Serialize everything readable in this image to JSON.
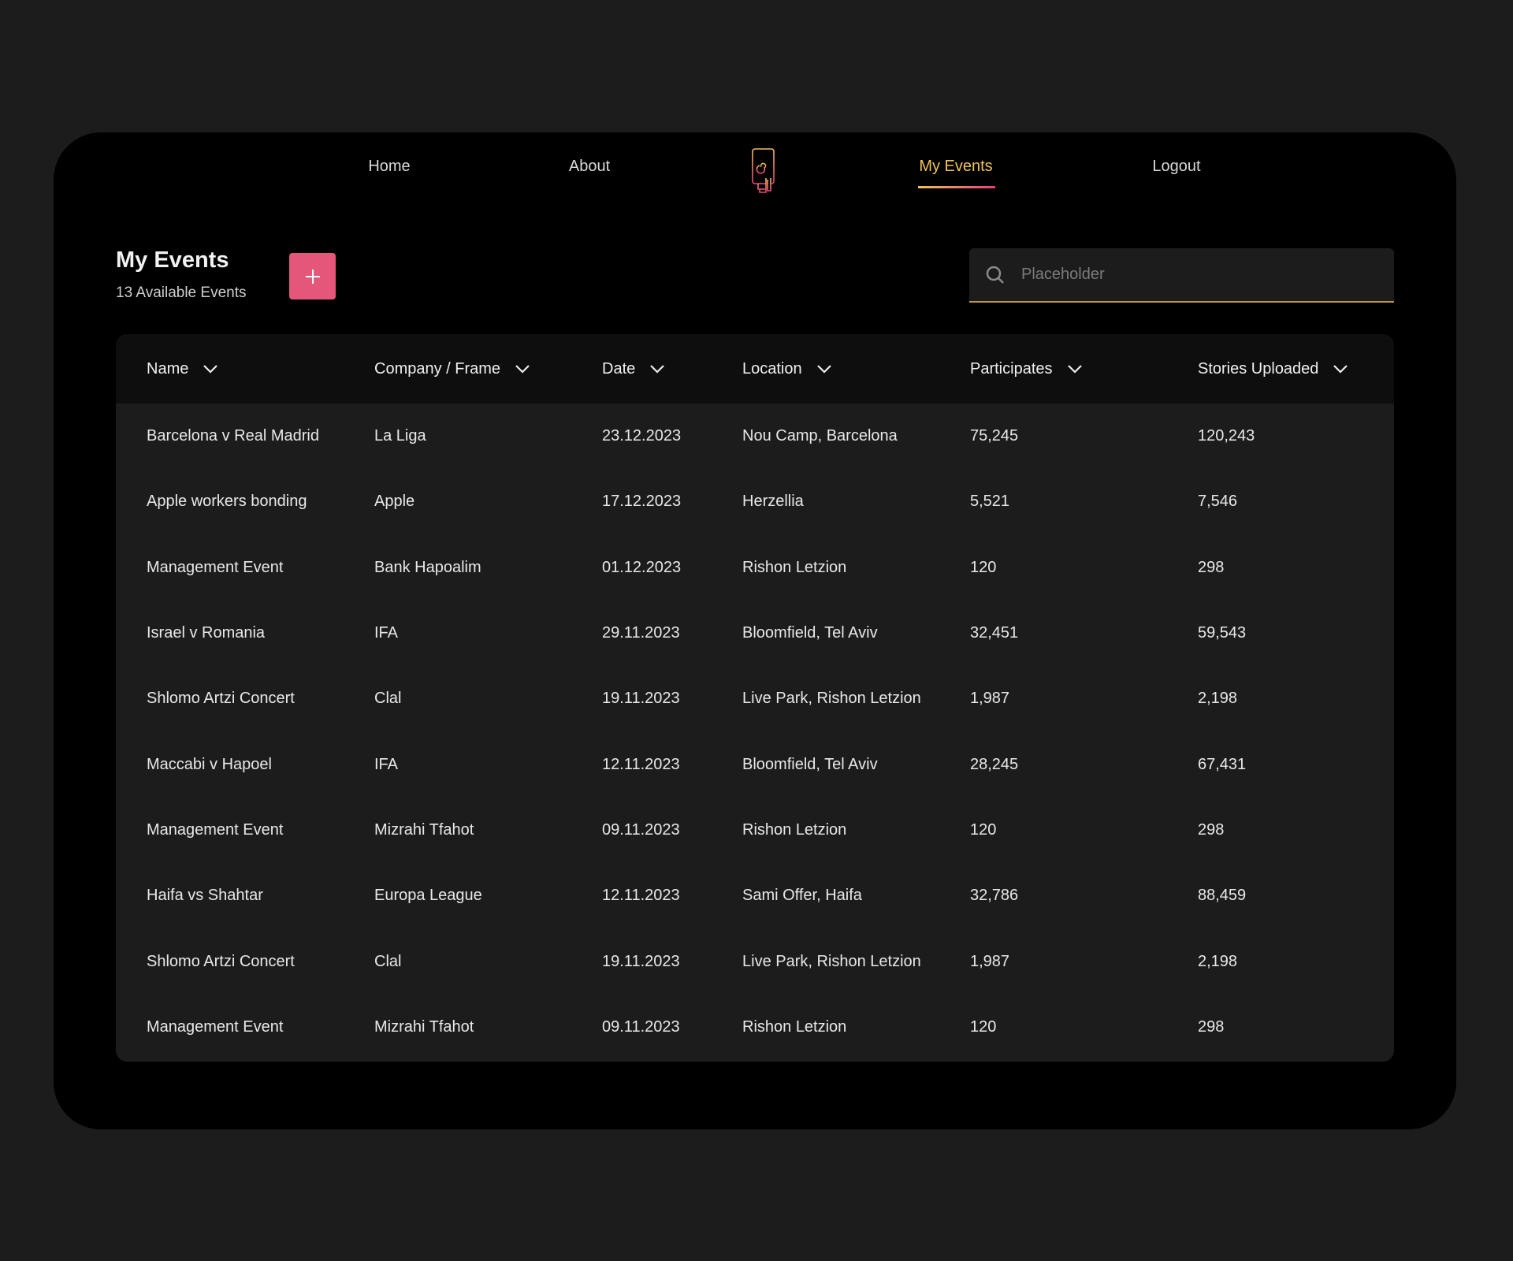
{
  "nav": {
    "home": "Home",
    "about": "About",
    "my_events": "My Events",
    "logout": "Logout"
  },
  "colors": {
    "accent": "#e4577a",
    "gold": "#f0c35a",
    "background": "#1c1c1c"
  },
  "header": {
    "title": "My Events",
    "subtitle": "13 Available Events",
    "add_icon": "plus-icon"
  },
  "search": {
    "placeholder": "Placeholder",
    "value": ""
  },
  "table": {
    "columns": [
      "Name",
      "Company / Frame",
      "Date",
      "Location",
      "Participates",
      "Stories Uploaded"
    ],
    "rows": [
      [
        "Barcelona v Real Madrid",
        "La Liga",
        "23.12.2023",
        "Nou Camp, Barcelona",
        "75,245",
        "120,243"
      ],
      [
        "Apple workers bonding",
        "Apple",
        "17.12.2023",
        "Herzellia",
        "5,521",
        "7,546"
      ],
      [
        "Management Event",
        "Bank Hapoalim",
        "01.12.2023",
        "Rishon Letzion",
        "120",
        "298"
      ],
      [
        "Israel v Romania",
        "IFA",
        "29.11.2023",
        "Bloomfield, Tel Aviv",
        "32,451",
        "59,543"
      ],
      [
        "Shlomo Artzi Concert",
        "Clal",
        "19.11.2023",
        "Live Park, Rishon Letzion",
        "1,987",
        "2,198"
      ],
      [
        "Maccabi v Hapoel",
        "IFA",
        "12.11.2023",
        "Bloomfield, Tel Aviv",
        "28,245",
        "67,431"
      ],
      [
        "Management Event",
        "Mizrahi Tfahot",
        "09.11.2023",
        "Rishon Letzion",
        "120",
        "298"
      ],
      [
        "Haifa vs Shahtar",
        "Europa League",
        "12.11.2023",
        "Sami Offer, Haifa",
        "32,786",
        "88,459"
      ],
      [
        "Shlomo Artzi Concert",
        "Clal",
        "19.11.2023",
        "Live Park, Rishon Letzion",
        "1,987",
        "2,198"
      ],
      [
        "Management Event",
        "Mizrahi Tfahot",
        "09.11.2023",
        "Rishon Letzion",
        "120",
        "298"
      ]
    ]
  }
}
